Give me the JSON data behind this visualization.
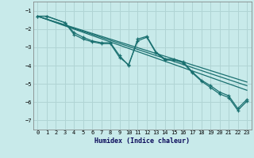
{
  "xlabel": "Humidex (Indice chaleur)",
  "bg_color": "#c8eaea",
  "grid_color": "#b0d4d4",
  "line_color": "#1a7070",
  "xlim": [
    -0.5,
    23.5
  ],
  "ylim": [
    -7.5,
    -0.5
  ],
  "yticks": [
    -7,
    -6,
    -5,
    -4,
    -3,
    -2,
    -1
  ],
  "xticks": [
    0,
    1,
    2,
    3,
    4,
    5,
    6,
    7,
    8,
    9,
    10,
    11,
    12,
    13,
    14,
    15,
    16,
    17,
    18,
    19,
    20,
    21,
    22,
    23
  ],
  "xtick_labels": [
    "0",
    "1",
    "2",
    "3",
    "4",
    "5",
    "6",
    "7",
    "8",
    "9",
    "10",
    "11",
    "12",
    "13",
    "14",
    "15",
    "16",
    "17",
    "18",
    "19",
    "20",
    "21",
    "22",
    "23"
  ],
  "series1_x": [
    0,
    1,
    3,
    4,
    5,
    6,
    7,
    8,
    9,
    10,
    11,
    12,
    13,
    14,
    15,
    16,
    17,
    18,
    19,
    20,
    21,
    22,
    23
  ],
  "series1_y": [
    -1.3,
    -1.3,
    -1.65,
    -2.3,
    -2.55,
    -2.7,
    -2.8,
    -2.8,
    -3.55,
    -3.95,
    -2.65,
    -2.45,
    -3.3,
    -3.7,
    -3.7,
    -3.85,
    -4.4,
    -4.85,
    -5.2,
    -5.55,
    -5.75,
    -6.45,
    -5.95
  ],
  "series2_x": [
    0,
    1,
    3,
    4,
    5,
    6,
    7,
    8,
    9,
    10,
    11,
    12,
    13,
    14,
    15,
    16,
    17,
    18,
    19,
    20,
    21,
    22,
    23
  ],
  "series2_y": [
    -1.3,
    -1.3,
    -1.65,
    -2.2,
    -2.45,
    -2.65,
    -2.75,
    -2.75,
    -3.45,
    -4.0,
    -2.55,
    -2.4,
    -3.25,
    -3.65,
    -3.65,
    -3.8,
    -4.35,
    -4.8,
    -5.1,
    -5.45,
    -5.65,
    -6.35,
    -5.85
  ],
  "trend1_x": [
    0,
    23
  ],
  "trend1_y": [
    -1.3,
    -5.35
  ],
  "trend2_x": [
    0,
    23
  ],
  "trend2_y": [
    -1.3,
    -5.1
  ],
  "trend3_x": [
    0,
    23
  ],
  "trend3_y": [
    -1.3,
    -4.9
  ],
  "linewidth": 0.9,
  "marker_size": 2.5
}
